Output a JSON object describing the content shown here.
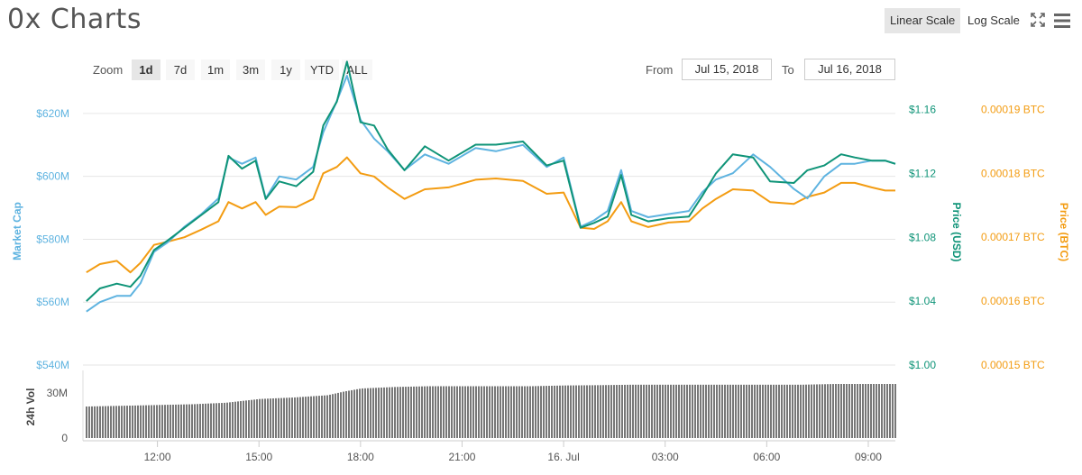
{
  "page": {
    "title": "0x Charts",
    "scale_buttons": [
      "Linear Scale",
      "Log Scale"
    ],
    "active_scale": "Linear Scale",
    "zoom_label": "Zoom",
    "zoom_buttons": [
      "1d",
      "7d",
      "1m",
      "3m",
      "1y",
      "YTD",
      "ALL"
    ],
    "active_zoom": "1d",
    "from_label": "From",
    "from_value": "Jul 15, 2018",
    "to_label": "To",
    "to_value": "Jul 16, 2018",
    "icons": [
      "fullscreen-icon",
      "menu-icon"
    ]
  },
  "chart_data": {
    "type": "line",
    "title": "0x Charts",
    "x_ticks": [
      "12:00",
      "15:00",
      "18:00",
      "21:00",
      "16. Jul",
      "03:00",
      "06:00",
      "09:00"
    ],
    "x_tick_hours": [
      12,
      15,
      18,
      21,
      24,
      27,
      30,
      33
    ],
    "x_range_hours": [
      9.8,
      33.8
    ],
    "axes": {
      "market_cap": {
        "label": "Market Cap",
        "ticks": [
          "$540M",
          "$560M",
          "$580M",
          "$600M",
          "$620M"
        ],
        "range": [
          540,
          628
        ],
        "unit": "M USD"
      },
      "price_usd": {
        "label": "Price (USD)",
        "ticks": [
          "$1.00",
          "$1.04",
          "$1.08",
          "$1.12",
          "$1.16"
        ],
        "range": [
          1.0,
          1.1733
        ]
      },
      "price_btc": {
        "label": "Price (BTC)",
        "ticks": [
          "0.00015 BTC",
          "0.00016 BTC",
          "0.00017 BTC",
          "0.00018 BTC",
          "0.00019 BTC"
        ],
        "range": [
          0.00015,
          0.0001933
        ]
      },
      "volume": {
        "label": "24h Vol",
        "ticks": [
          "0",
          "30M"
        ],
        "range": [
          0,
          45
        ],
        "unit": "M"
      }
    },
    "colors": {
      "market_cap": "#5eb3e0",
      "price_usd": "#0f9478",
      "price_btc": "#f39c12",
      "volume": "#777777",
      "grid": "#e6e6e6"
    },
    "series": [
      {
        "name": "Market Cap",
        "x": [
          9.9,
          10.3,
          10.8,
          11.2,
          11.5,
          11.9,
          12.3,
          12.8,
          13.3,
          13.8,
          14.1,
          14.5,
          14.9,
          15.2,
          15.6,
          16.1,
          16.6,
          16.9,
          17.3,
          17.6,
          18.0,
          18.4,
          18.8,
          19.3,
          19.9,
          20.6,
          21.4,
          22.0,
          22.8,
          23.5,
          24.0,
          24.5,
          24.9,
          25.3,
          25.7,
          26.0,
          26.5,
          27.1,
          27.7,
          28.1,
          28.5,
          29.0,
          29.6,
          30.1,
          30.8,
          31.2,
          31.7,
          32.2,
          32.6,
          33.1,
          33.5,
          33.8
        ],
        "y": [
          557,
          560,
          562,
          562,
          566,
          576,
          579,
          584,
          588,
          593,
          606,
          604,
          606,
          593,
          600,
          599,
          603,
          614,
          624,
          632,
          618,
          612,
          608,
          602,
          607,
          604,
          609,
          608,
          610,
          603,
          606,
          584,
          586,
          589,
          602,
          589,
          587,
          588,
          589,
          595,
          599,
          601,
          607,
          603,
          596,
          593,
          600,
          604,
          604,
          605,
          605,
          604
        ]
      },
      {
        "name": "Price (USD)",
        "x": [
          9.9,
          10.3,
          10.8,
          11.2,
          11.5,
          11.9,
          12.3,
          12.8,
          13.3,
          13.8,
          14.1,
          14.5,
          14.9,
          15.2,
          15.6,
          16.1,
          16.6,
          16.9,
          17.3,
          17.6,
          18.0,
          18.4,
          18.8,
          19.3,
          19.9,
          20.6,
          21.4,
          22.0,
          22.8,
          23.5,
          24.0,
          24.5,
          24.9,
          25.3,
          25.7,
          26.0,
          26.5,
          27.1,
          27.7,
          28.1,
          28.5,
          29.0,
          29.6,
          30.1,
          30.8,
          31.2,
          31.7,
          32.2,
          32.6,
          33.1,
          33.5,
          33.8
        ],
        "y": [
          1.04,
          1.048,
          1.051,
          1.049,
          1.056,
          1.072,
          1.078,
          1.086,
          1.094,
          1.102,
          1.131,
          1.123,
          1.128,
          1.104,
          1.115,
          1.112,
          1.121,
          1.15,
          1.165,
          1.19,
          1.152,
          1.15,
          1.135,
          1.122,
          1.137,
          1.128,
          1.138,
          1.138,
          1.14,
          1.125,
          1.128,
          1.086,
          1.089,
          1.093,
          1.119,
          1.094,
          1.09,
          1.092,
          1.093,
          1.106,
          1.12,
          1.132,
          1.13,
          1.115,
          1.114,
          1.122,
          1.125,
          1.132,
          1.13,
          1.128,
          1.128,
          1.126
        ]
      },
      {
        "name": "Price (BTC)",
        "x": [
          9.9,
          10.3,
          10.8,
          11.2,
          11.5,
          11.9,
          12.3,
          12.8,
          13.3,
          13.8,
          14.1,
          14.5,
          14.9,
          15.2,
          15.6,
          16.1,
          16.6,
          16.9,
          17.3,
          17.6,
          18.0,
          18.4,
          18.8,
          19.3,
          19.9,
          20.6,
          21.4,
          22.0,
          22.8,
          23.5,
          24.0,
          24.5,
          24.9,
          25.3,
          25.7,
          26.0,
          26.5,
          27.1,
          27.7,
          28.1,
          28.5,
          29.0,
          29.6,
          30.1,
          30.8,
          31.2,
          31.7,
          32.2,
          32.6,
          33.1,
          33.5,
          33.8
        ],
        "y": [
          0.0001645,
          0.0001658,
          0.0001663,
          0.0001645,
          0.000166,
          0.0001688,
          0.0001693,
          0.00017,
          0.0001712,
          0.0001725,
          0.0001755,
          0.0001745,
          0.0001755,
          0.0001735,
          0.0001748,
          0.0001747,
          0.000176,
          0.00018,
          0.000181,
          0.0001825,
          0.00018,
          0.0001795,
          0.0001778,
          0.000176,
          0.0001775,
          0.0001778,
          0.000179,
          0.0001792,
          0.0001788,
          0.0001768,
          0.000177,
          0.0001715,
          0.0001713,
          0.0001725,
          0.0001755,
          0.0001725,
          0.0001716,
          0.0001723,
          0.0001725,
          0.0001745,
          0.000176,
          0.0001775,
          0.0001773,
          0.0001755,
          0.0001752,
          0.0001763,
          0.000177,
          0.0001785,
          0.0001785,
          0.0001778,
          0.0001773,
          0.0001773
        ]
      },
      {
        "name": "24h Vol",
        "x": [
          9.9,
          11.0,
          12.0,
          13.0,
          14.0,
          15.0,
          16.0,
          17.0,
          17.5,
          18.0,
          19.0,
          20.0,
          21.0,
          22.0,
          23.0,
          24.0,
          25.0,
          26.0,
          27.0,
          28.0,
          29.0,
          30.0,
          31.0,
          32.0,
          33.0,
          33.8
        ],
        "y": [
          21,
          21.5,
          22,
          22.5,
          23.5,
          26,
          27,
          28.5,
          31,
          33,
          34,
          34.5,
          34.5,
          34.5,
          34.5,
          35,
          35.2,
          35.5,
          35.5,
          35.5,
          35.5,
          35.5,
          35.5,
          36,
          36,
          36
        ]
      }
    ],
    "grid": true,
    "legend": "none"
  }
}
